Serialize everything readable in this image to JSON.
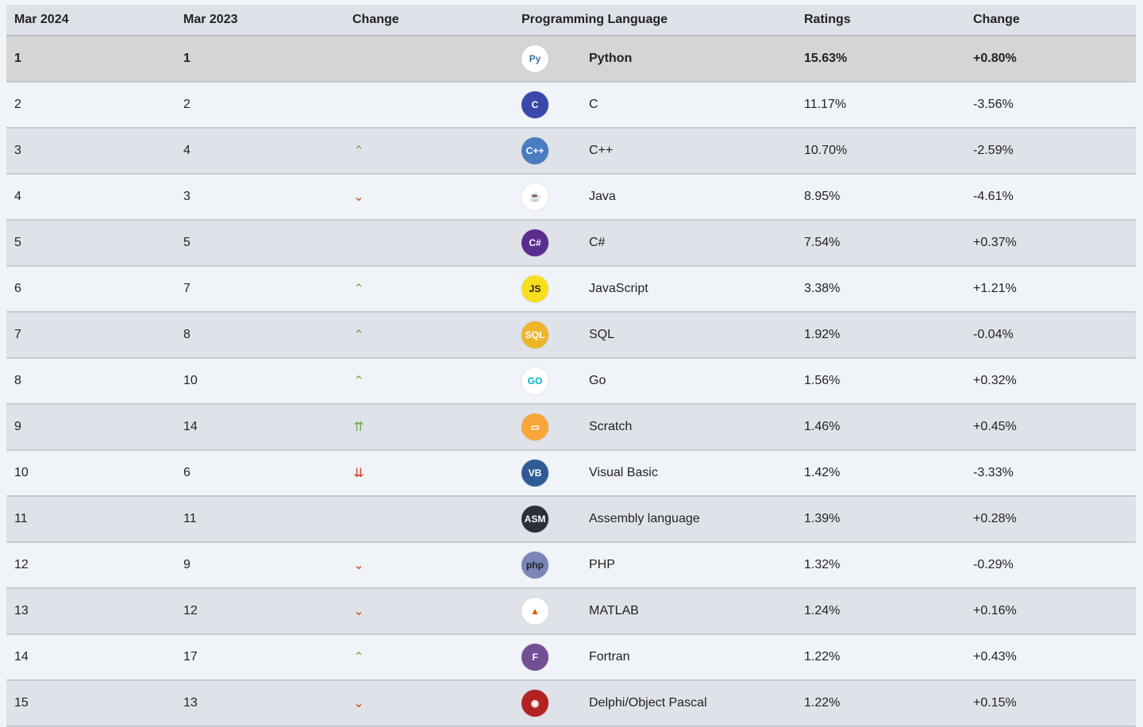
{
  "header": {
    "col1": "Mar 2024",
    "col2": "Mar 2023",
    "col3": "Change",
    "col4": "Programming Language",
    "col5": "Ratings",
    "col6": "Change"
  },
  "rows": [
    {
      "rank2024": "1",
      "rank2023": "1",
      "trend": "none",
      "language": "Python",
      "rating": "15.63%",
      "change": "+0.80%",
      "icon": "python-icon",
      "logo_bg": "#ffffff",
      "logo_fg": "#3772a4",
      "logo_text": "Py"
    },
    {
      "rank2024": "2",
      "rank2023": "2",
      "trend": "none",
      "language": "C",
      "rating": "11.17%",
      "change": "-3.56%",
      "icon": "c-icon",
      "logo_bg": "#3949ab",
      "logo_fg": "#ffffff",
      "logo_text": "C"
    },
    {
      "rank2024": "3",
      "rank2023": "4",
      "trend": "up",
      "language": "C++",
      "rating": "10.70%",
      "change": "-2.59%",
      "icon": "cpp-icon",
      "logo_bg": "#4a7cc0",
      "logo_fg": "#ffffff",
      "logo_text": "C++"
    },
    {
      "rank2024": "4",
      "rank2023": "3",
      "trend": "down",
      "language": "Java",
      "rating": "8.95%",
      "change": "-4.61%",
      "icon": "java-icon",
      "logo_bg": "#ffffff",
      "logo_fg": "#e76f00",
      "logo_text": "☕"
    },
    {
      "rank2024": "5",
      "rank2023": "5",
      "trend": "none",
      "language": "C#",
      "rating": "7.54%",
      "change": "+0.37%",
      "icon": "csharp-icon",
      "logo_bg": "#5c2d91",
      "logo_fg": "#ffffff",
      "logo_text": "C#"
    },
    {
      "rank2024": "6",
      "rank2023": "7",
      "trend": "up",
      "language": "JavaScript",
      "rating": "3.38%",
      "change": "+1.21%",
      "icon": "javascript-icon",
      "logo_bg": "#f7df1e",
      "logo_fg": "#222222",
      "logo_text": "JS"
    },
    {
      "rank2024": "7",
      "rank2023": "8",
      "trend": "up",
      "language": "SQL",
      "rating": "1.92%",
      "change": "-0.04%",
      "icon": "sql-icon",
      "logo_bg": "#f0b429",
      "logo_fg": "#ffffff",
      "logo_text": "SQL"
    },
    {
      "rank2024": "8",
      "rank2023": "10",
      "trend": "up",
      "language": "Go",
      "rating": "1.56%",
      "change": "+0.32%",
      "icon": "go-icon",
      "logo_bg": "#ffffff",
      "logo_fg": "#00add8",
      "logo_text": "GO"
    },
    {
      "rank2024": "9",
      "rank2023": "14",
      "trend": "upup",
      "language": "Scratch",
      "rating": "1.46%",
      "change": "+0.45%",
      "icon": "scratch-icon",
      "logo_bg": "#f7a738",
      "logo_fg": "#ffffff",
      "logo_text": "▭"
    },
    {
      "rank2024": "10",
      "rank2023": "6",
      "trend": "downdown",
      "language": "Visual Basic",
      "rating": "1.42%",
      "change": "-3.33%",
      "icon": "visual-basic-icon",
      "logo_bg": "#2f5c96",
      "logo_fg": "#ffffff",
      "logo_text": "VB"
    },
    {
      "rank2024": "11",
      "rank2023": "11",
      "trend": "none",
      "language": "Assembly language",
      "rating": "1.39%",
      "change": "+0.28%",
      "icon": "assembly-icon",
      "logo_bg": "#2b2f3a",
      "logo_fg": "#ffffff",
      "logo_text": "ASM"
    },
    {
      "rank2024": "12",
      "rank2023": "9",
      "trend": "down",
      "language": "PHP",
      "rating": "1.32%",
      "change": "-0.29%",
      "icon": "php-icon",
      "logo_bg": "#7a86b8",
      "logo_fg": "#222222",
      "logo_text": "php"
    },
    {
      "rank2024": "13",
      "rank2023": "12",
      "trend": "down",
      "language": "MATLAB",
      "rating": "1.24%",
      "change": "+0.16%",
      "icon": "matlab-icon",
      "logo_bg": "#ffffff",
      "logo_fg": "#d95f02",
      "logo_text": "▲"
    },
    {
      "rank2024": "14",
      "rank2023": "17",
      "trend": "up",
      "language": "Fortran",
      "rating": "1.22%",
      "change": "+0.43%",
      "icon": "fortran-icon",
      "logo_bg": "#734f96",
      "logo_fg": "#ffffff",
      "logo_text": "F"
    },
    {
      "rank2024": "15",
      "rank2023": "13",
      "trend": "down",
      "language": "Delphi/Object Pascal",
      "rating": "1.22%",
      "change": "+0.15%",
      "icon": "delphi-icon",
      "logo_bg": "#b22222",
      "logo_fg": "#ffffff",
      "logo_text": "◉"
    }
  ],
  "trend_glyphs": {
    "up": "⌃",
    "down": "⌄",
    "upup": "⇈",
    "downdown": "⇊",
    "none": ""
  },
  "colors": {
    "up": "#6aa84f",
    "down": "#cc4125"
  }
}
